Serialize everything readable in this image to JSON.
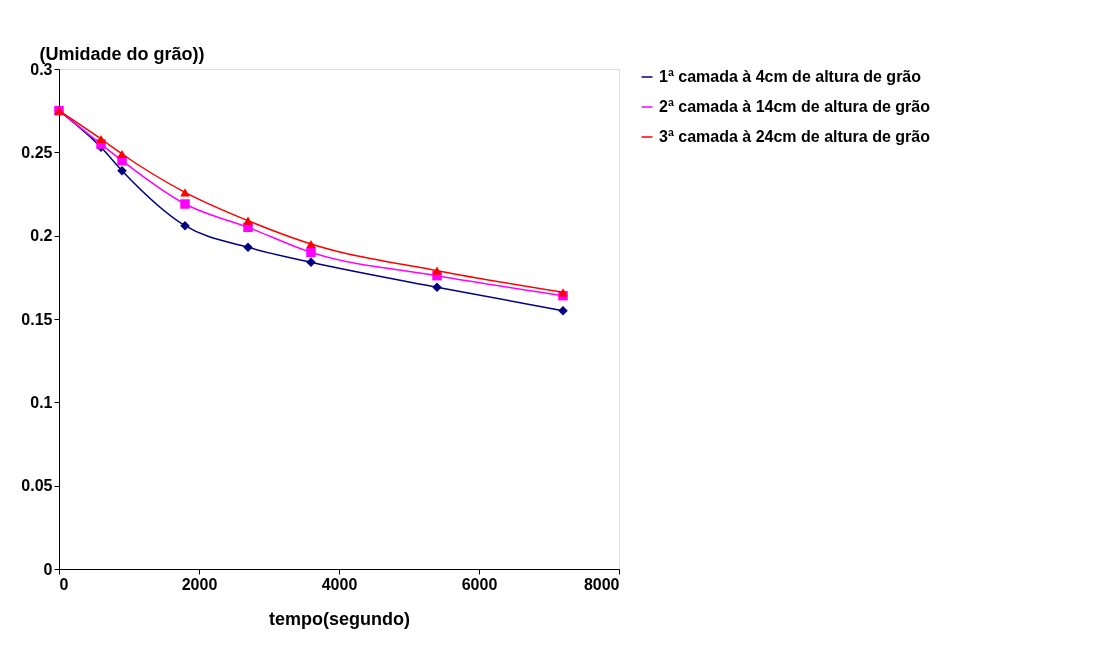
{
  "chart_data": {
    "type": "line",
    "ylabel": "(Umidade do grão))",
    "xlabel": "tempo(segundo)",
    "x": [
      0,
      600,
      900,
      1800,
      2700,
      3600,
      5400,
      7200
    ],
    "series": [
      {
        "name": "1ª camada à 4cm de altura de grão",
        "color": "#000080",
        "marker": "diamond",
        "values": [
          0.275,
          0.253,
          0.239,
          0.206,
          0.193,
          0.184,
          0.169,
          0.155
        ]
      },
      {
        "name": "2ª camada à 14cm de altura de grão",
        "color": "#ff00ff",
        "marker": "square",
        "values": [
          0.275,
          0.255,
          0.245,
          0.219,
          0.205,
          0.19,
          0.176,
          0.164
        ]
      },
      {
        "name": "3ª camada à 24cm de altura de grão",
        "color": "#ff0000",
        "marker": "triangle",
        "values": [
          0.275,
          0.258,
          0.249,
          0.226,
          0.209,
          0.195,
          0.179,
          0.166
        ]
      }
    ],
    "xlim": [
      0,
      8000
    ],
    "xticks": [
      0,
      2000,
      4000,
      6000,
      8000
    ],
    "ylim": [
      0,
      0.3
    ],
    "yticks": [
      0,
      0.05,
      0.1,
      0.15,
      0.2,
      0.25,
      0.3
    ],
    "grid": false,
    "legend": "right",
    "line_style": "solid"
  }
}
